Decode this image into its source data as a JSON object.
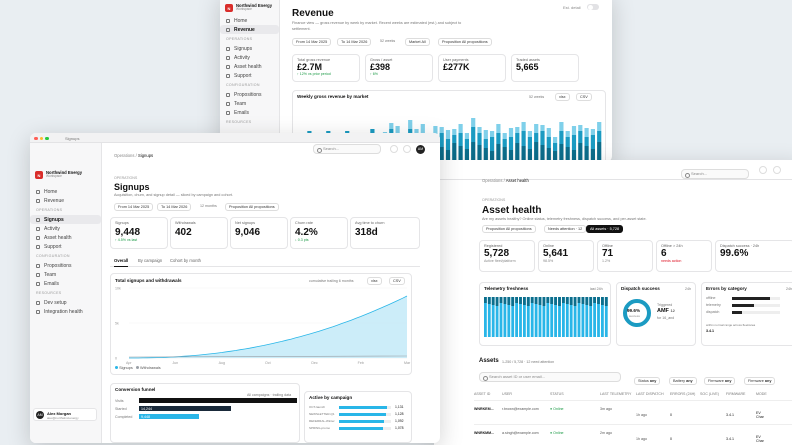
{
  "revenue": {
    "brand": {
      "name": "Northwind Energy",
      "sub": "Workspace"
    },
    "nav": [
      {
        "label": "Home"
      },
      {
        "label": "Revenue",
        "active": true
      }
    ],
    "section_operations": "OPERATIONS",
    "ops": [
      {
        "label": "Signups"
      },
      {
        "label": "Activity"
      },
      {
        "label": "Asset health"
      },
      {
        "label": "Support"
      }
    ],
    "section_config": "CONFIGURATION",
    "config": [
      {
        "label": "Propositions"
      },
      {
        "label": "Team"
      },
      {
        "label": "Emails"
      }
    ],
    "section_resources": "RESOURCES",
    "title": "Revenue",
    "subtitle": "Finance view — gross revenue by week by market. Recent weeks are estimated (est.) and subject to",
    "subtitle2": "settlement.",
    "toggle_label": "Est. detail",
    "filters": {
      "from": "From 14 Mar 2025",
      "to": "To 14 Mar 2026",
      "weeks": "52 weeks",
      "market": "Market All",
      "proposition": "Proposition All propositions"
    },
    "kpis": [
      {
        "label": "Total gross revenue",
        "value": "£2.7M",
        "delta": "↑ 12% vs prior period"
      },
      {
        "label": "Gross / asset",
        "value": "£398",
        "delta": "↑ 6%"
      },
      {
        "label": "User payments",
        "value": "£277K",
        "delta": ""
      },
      {
        "label": "Traded assets",
        "value": "5,665",
        "delta": ""
      }
    ],
    "chart_title": "Weekly gross revenue by market",
    "chart_range": "52 weeks",
    "chart_btn1": "xlsx",
    "chart_btn2": "CSV",
    "colors": {
      "dark": "#0c6e8c",
      "mid": "#1b9bc2",
      "light": "#7fd0ea"
    }
  },
  "signups": {
    "window_title": "Signups",
    "breadcrumb_parent": "Operations",
    "breadcrumb_current": "Signups",
    "search_placeholder": "Search...",
    "avatar": "AM",
    "brand": {
      "name": "Northwind Energy",
      "sub": "Workspace"
    },
    "nav": [
      {
        "label": "Home"
      },
      {
        "label": "Revenue"
      }
    ],
    "section_operations": "OPERATIONS",
    "ops": [
      {
        "label": "Signups",
        "active": true
      },
      {
        "label": "Activity"
      },
      {
        "label": "Asset health"
      },
      {
        "label": "Support"
      }
    ],
    "section_config": "CONFIGURATION",
    "config": [
      {
        "label": "Propositions"
      },
      {
        "label": "Team"
      },
      {
        "label": "Emails"
      }
    ],
    "section_resources": "RESOURCES",
    "resources": [
      {
        "label": "Dev setup"
      },
      {
        "label": "Integration health"
      }
    ],
    "user": {
      "name": "Alex Morgan",
      "email": "alex@northwind.energy"
    },
    "section_label": "OPERATIONS",
    "title": "Signups",
    "subtitle": "Acquisition, churn, and signup detail — sliced by campaign and cohort.",
    "filters": {
      "from": "From 14 Mar 2025",
      "to": "To 14 Mar 2026",
      "months": "12 months",
      "proposition": "Proposition All propositions"
    },
    "kpis": [
      {
        "label": "Signups",
        "value": "9,448",
        "delta": "↑ 4.5% vs last"
      },
      {
        "label": "Withdrawals",
        "value": "402",
        "delta": ""
      },
      {
        "label": "Net signups",
        "value": "9,046",
        "delta": ""
      },
      {
        "label": "Churn rate",
        "value": "4.2%",
        "delta": "↓ 0.3 pts"
      },
      {
        "label": "Avg time to churn",
        "value": "318d",
        "delta": ""
      }
    ],
    "tabs": [
      {
        "label": "Overall",
        "active": true
      },
      {
        "label": "By campaign"
      },
      {
        "label": "Cohort by month"
      }
    ],
    "chart_title": "Total signups and withdrawals",
    "chart_toggles": "cumulative   trailing 6 months",
    "chart_btn1": "xlsx",
    "chart_btn2": "CSV",
    "legend": [
      {
        "name": "Signups",
        "color": "#29b6e8"
      },
      {
        "name": "Withdrawals",
        "color": "#9aa0a6"
      }
    ],
    "yticks": [
      "10k",
      "5k",
      "0"
    ],
    "xticks": [
      "Apr",
      "Jun",
      "Aug",
      "Oct",
      "Dec",
      "Feb",
      "Mar"
    ],
    "funnel_title": "Conversion funnel",
    "funnel_filter": "All campaigns · trailing data",
    "funnel": [
      {
        "label": "Visits",
        "value": "",
        "pct": 100
      },
      {
        "label": "Started",
        "value": "14,244",
        "pct": 58
      },
      {
        "label": "Completed",
        "value": "9,448",
        "pct": 38
      }
    ],
    "campaign_title": "Active by campaign",
    "campaigns": [
      {
        "label": "OCT-launch",
        "value": "1,131",
        "pct": 92
      },
      {
        "label": "NEWSLETTER-Q1",
        "value": "1,128",
        "pct": 90
      },
      {
        "label": "REFERRAL-Winter",
        "value": "1,092",
        "pct": 86
      },
      {
        "label": "SPRING-promo",
        "value": "1,078",
        "pct": 84
      }
    ]
  },
  "asset": {
    "breadcrumb_parent": "Operations",
    "breadcrumb_current": "Asset health",
    "search_placeholder": "Search...",
    "section_label": "OPERATIONS",
    "title": "Asset health",
    "subtitle": "Are my assets healthy? Online status, telemetry freshness, dispatch success, and per-asset state.",
    "filters": {
      "proposition": "Proposition All propositions",
      "needs": "Needs attention · 12",
      "all": "All assets · 5,728"
    },
    "kpis": [
      {
        "label": "Registered",
        "value": "5,728",
        "delta": "Active fleet/platform",
        "red": false
      },
      {
        "label": "Online",
        "value": "5,641",
        "delta": "98.5%",
        "red": false
      },
      {
        "label": "Offline",
        "value": "71",
        "delta": "1.2%",
        "red": false
      },
      {
        "label": "Offline > 24h",
        "value": "6",
        "delta": "needs action",
        "red": true
      },
      {
        "label": "Dispatch success · 24h",
        "value": "99.6%",
        "delta": "",
        "red": false
      }
    ],
    "telemetry_title": "Telemetry freshness",
    "telemetry_range": "last 24h",
    "dispatch_title": "Dispatch success",
    "dispatch_range": "24h",
    "dispatch_pct": "99.6%",
    "dispatch_sub": "success",
    "dispatch_triggered": "Triggered",
    "dispatch_num": "AMF",
    "dispatch_num2": "12",
    "dispatch_note": "for 16_and",
    "errors_title": "Errors by category",
    "errors_range": "24h",
    "errors": [
      {
        "label": "offline",
        "pct": 80
      },
      {
        "label": "telemetry",
        "pct": 45
      },
      {
        "label": "dispatch",
        "pct": 20
      }
    ],
    "errors_note": "within normal range across fleet/area",
    "errors_ver": "3.4.1",
    "assets_title": "Assets",
    "assets_sub": "1-250 / 5,728 · 12 need attention",
    "assets_search": "Search asset ID or user email...",
    "assets_filters": [
      {
        "label": "Status",
        "val": "any"
      },
      {
        "label": "Battery",
        "val": "any"
      },
      {
        "label": "Firmware",
        "val": "any"
      },
      {
        "label": "Firmware",
        "val": "any"
      }
    ],
    "columns": [
      "ASSET ID",
      "USER",
      "STATUS",
      "LAST TELEMETRY",
      "LAST DISPATCH",
      "ERRORS (24H)",
      "SOC (LIVE)",
      "FIRMWARE",
      "MODE"
    ],
    "rows": [
      {
        "id": "WNRKEM...",
        "user": "r.brown@example.com",
        "status": "Online",
        "telemetry": "3m ago",
        "dispatch": "1h ago",
        "errors": "0",
        "soc": "",
        "fw": "3.4.1",
        "mode": "EV Char"
      },
      {
        "id": "WNRKMM...",
        "user": "a.singh@example.com",
        "status": "Online",
        "telemetry": "2m ago",
        "dispatch": "1h ago",
        "errors": "0",
        "soc": "",
        "fw": "3.4.1",
        "mode": "EV Char"
      }
    ]
  }
}
